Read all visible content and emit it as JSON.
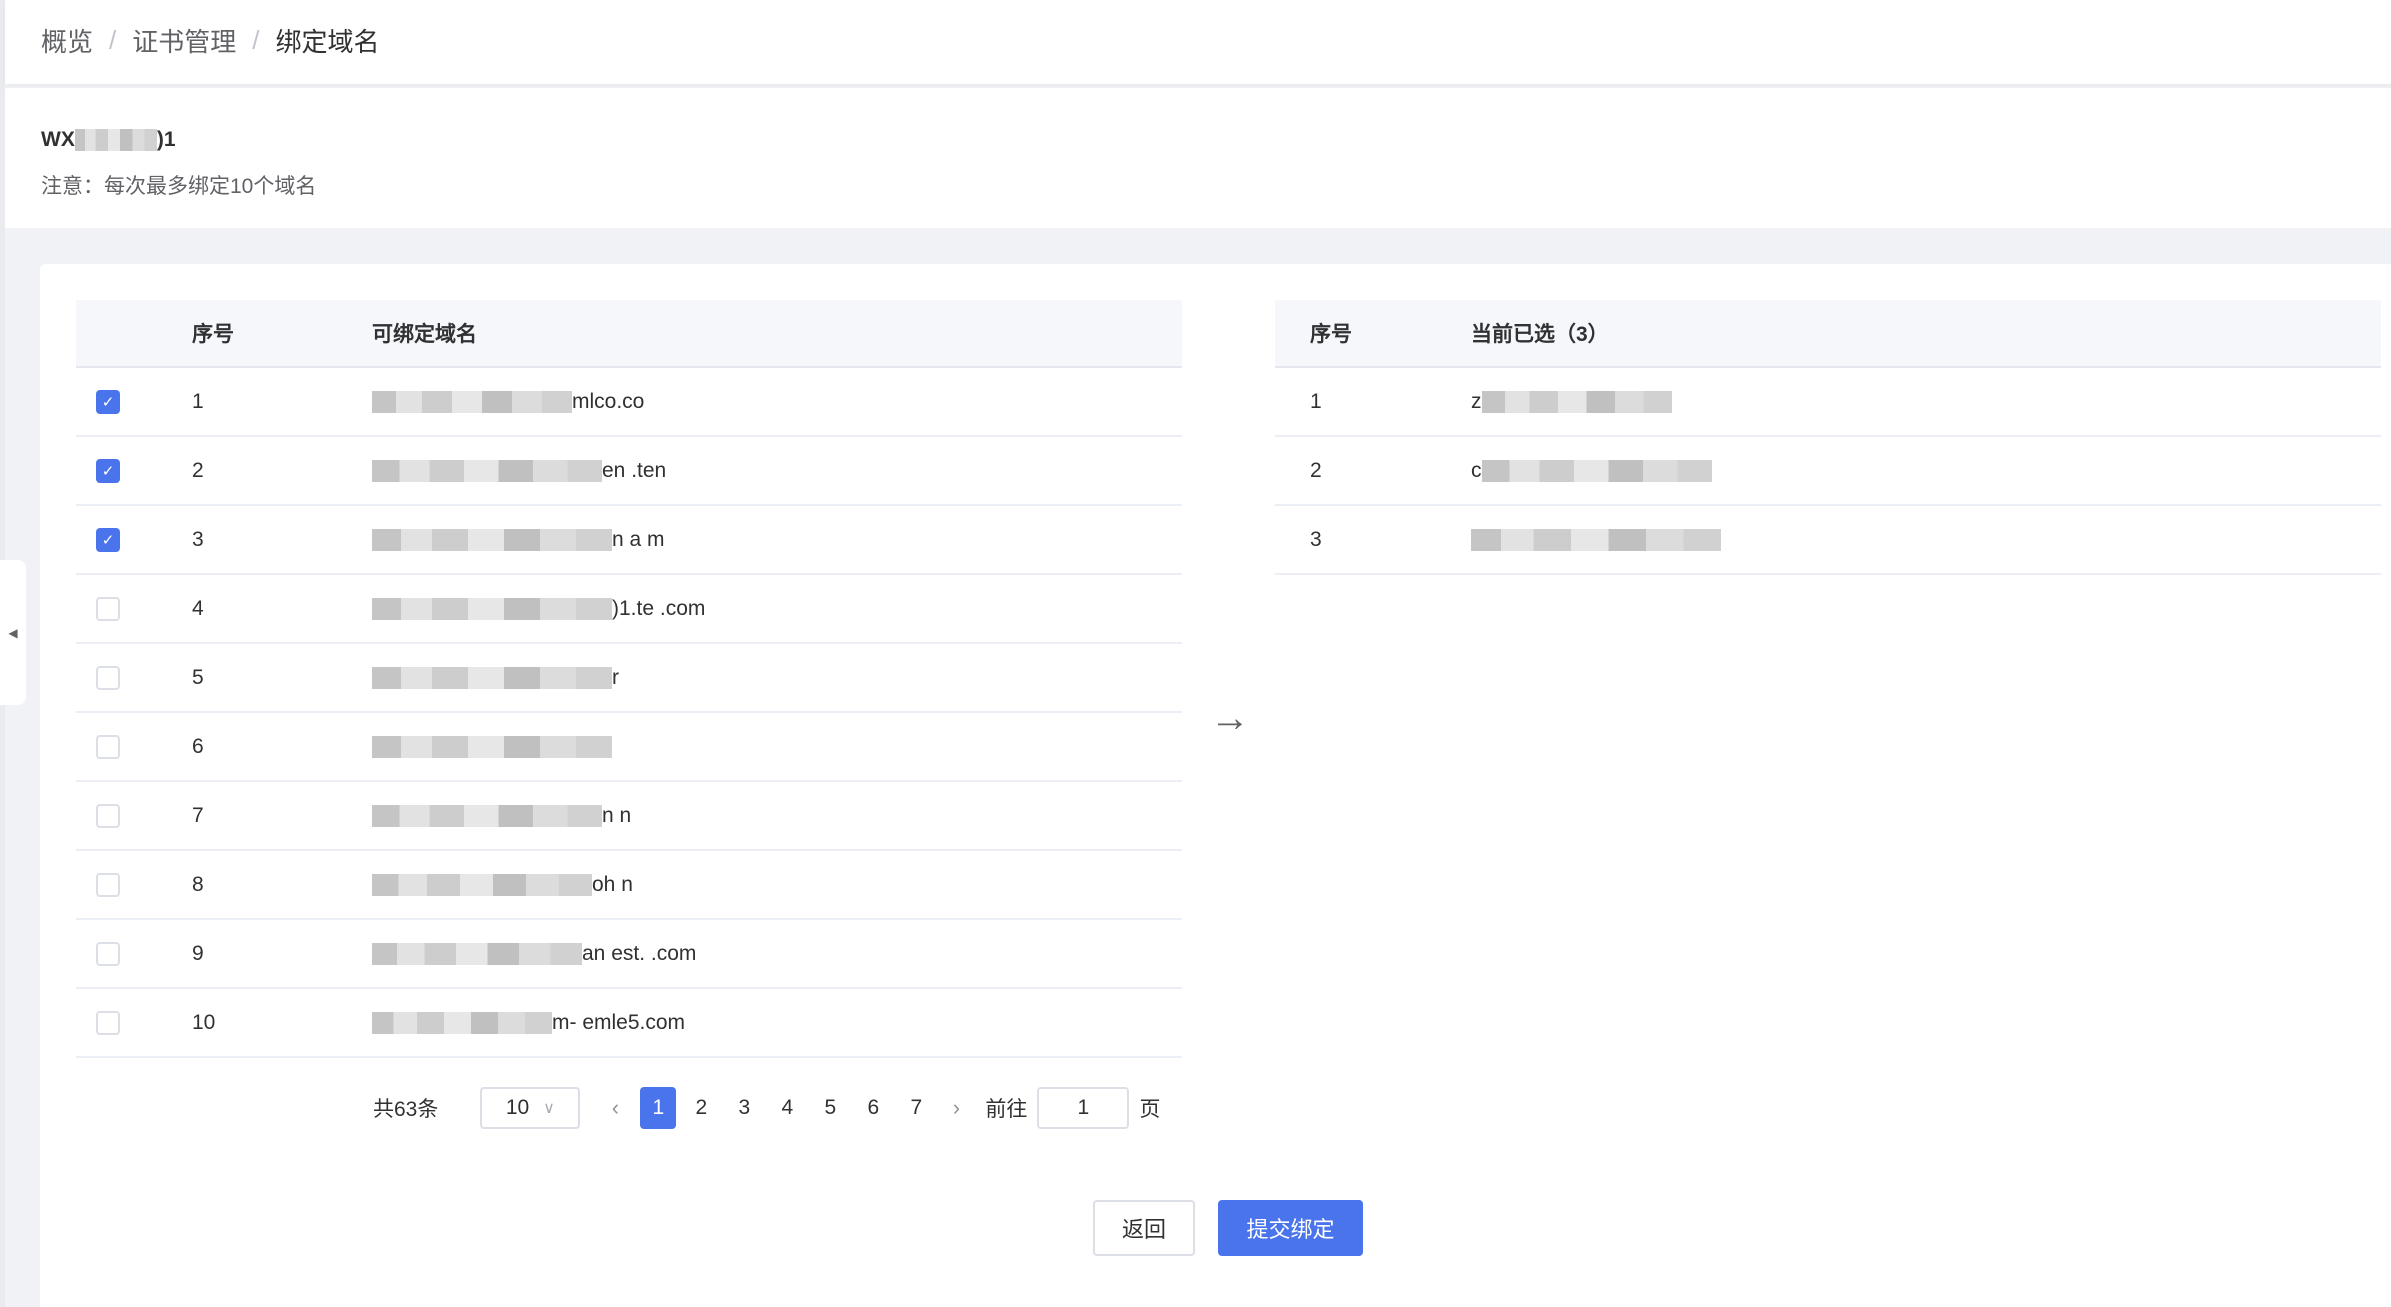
{
  "breadcrumb": [
    "概览",
    "证书管理",
    "绑定域名"
  ],
  "certificate": {
    "name_prefix": "WX",
    "name_suffix": ")1",
    "note": "注意：每次最多绑定10个域名"
  },
  "available": {
    "headers": {
      "index": "序号",
      "domain": "可绑定域名"
    },
    "rows": [
      {
        "index": "1",
        "checked": true,
        "domain": "mlco.co"
      },
      {
        "index": "2",
        "checked": true,
        "domain": "en .ten"
      },
      {
        "index": "3",
        "checked": true,
        "domain": "n a m"
      },
      {
        "index": "4",
        "checked": false,
        "domain": ")1.te .com"
      },
      {
        "index": "5",
        "checked": false,
        "domain": "r"
      },
      {
        "index": "6",
        "checked": false,
        "domain": ""
      },
      {
        "index": "7",
        "checked": false,
        "domain": "n n"
      },
      {
        "index": "8",
        "checked": false,
        "domain": "oh n"
      },
      {
        "index": "9",
        "checked": false,
        "domain": "an est. .com"
      },
      {
        "index": "10",
        "checked": false,
        "domain": "m- emle5.com"
      }
    ]
  },
  "selected": {
    "headers": {
      "index": "序号",
      "domain": "当前已选（3）"
    },
    "rows": [
      {
        "index": "1",
        "domain": "z"
      },
      {
        "index": "2",
        "domain": "c"
      },
      {
        "index": "3",
        "domain": ""
      }
    ]
  },
  "pagination": {
    "total": "共63条",
    "page_size": "10",
    "pages": [
      "1",
      "2",
      "3",
      "4",
      "5",
      "6",
      "7"
    ],
    "current": "1",
    "goto_label": "前往",
    "goto_value": "1",
    "page_unit": "页"
  },
  "buttons": {
    "back": "返回",
    "submit": "提交绑定"
  },
  "colors": {
    "primary": "#4a74eb"
  },
  "icons": {
    "transfer": "arrow-right-icon",
    "collapse": "caret-left-icon",
    "check": "check-icon"
  }
}
